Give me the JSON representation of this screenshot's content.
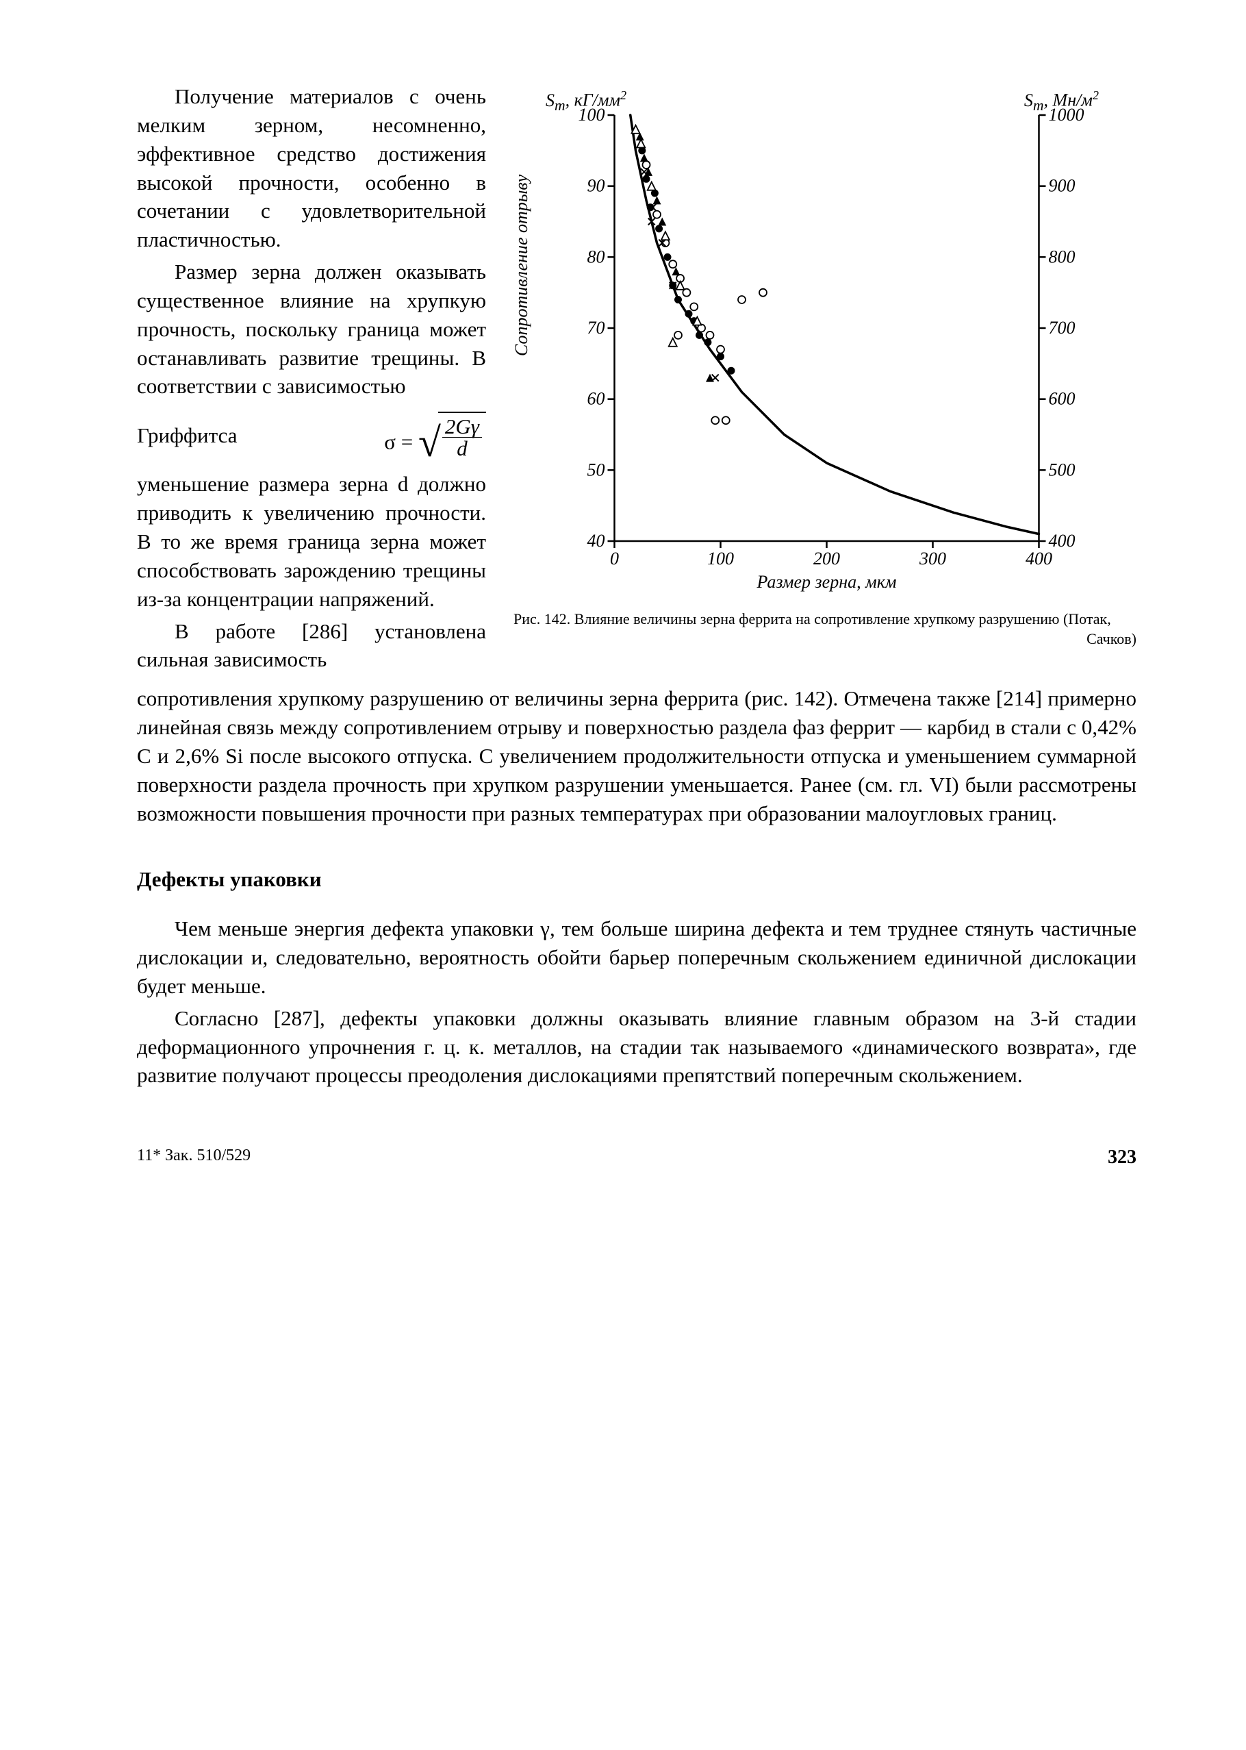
{
  "page": {
    "left_column_paragraphs": {
      "p1": "Получение материалов с очень мелким зерном, несомненно, эффективное средство достижения вы­сокой прочности, особенно в сочетании с удовлетво­рительной пластичностью.",
      "p2_head": "Размер зерна должен оказывать существенное влияние на хрупкую проч­ность, поскольку граница может останавливать раз­витие трещины. В соответ­ствии с зависимостью",
      "griffiths_label": "Гриффитса",
      "formula_sigma": "σ =",
      "formula_num": "2Gγ",
      "formula_den": "d",
      "p2_tail": "уменьшение размера зер­на d должно приводить к увеличению прочности. В то же время граница зерна может способство­вать зарождению трещи­ны из-за концентрации на­пряжений.",
      "p3": "В работе [286] установ­лена сильная зависимость"
    },
    "flow_paragraph": "сопротивления хрупкому разрушению от величины зерна феррита (рис. 142). Отмечена также [214] примерно линейная связь меж­ду сопротивлением отрыву и поверхностью раздела фаз фер­рит — карбид в стали с 0,42% С и 2,6% Si после высокого отпу­ска. С увеличением продолжительности отпуска и уменьшением суммарной поверхности раздела прочность при хрупком разру­шении уменьшается. Ранее (см. гл. VI) были рассмотрены воз­можности повышения прочности при разных температурах при образовании малоугловых границ.",
    "section_heading": "Дефекты упаковки",
    "defects_p1": "Чем меньше энергия дефекта упаковки γ, тем больше шири­на дефекта и тем труднее стянуть частичные дислокации и, сле­довательно, вероятность обойти барьер поперечным скольжени­ем единичной дислокации будет меньше.",
    "defects_p2": "Согласно [287], дефекты упаковки должны оказывать влияние главным образом на 3-й стадии деформационного уп­рочнения г. ц. к. металлов, на стадии так называемого «динами­ческого возврата», где развитие получают процессы преодоления дислокациями препятствий поперечным скольжением.",
    "footer_note": "11* Зак. 510/529",
    "page_number": "323"
  },
  "chart": {
    "type": "scatter+line",
    "background_color": "#ffffff",
    "axis_color": "#000000",
    "curve_color": "#000000",
    "curve_stroke_width": 3.5,
    "axis_stroke_width": 2.5,
    "tick_length": 10,
    "tick_font_size": 26,
    "axis_title_font_size": 26,
    "label_left_top_html": "S<sub>T</sub>, кГ/мм<sup>2</sup>",
    "label_left_top": "Sₜ, кГ/мм²",
    "label_right_top": "Sₜ, Мн/м²",
    "ylabel_left_rotated": "Сопротивление отрыву",
    "xlabel": "Размер зерна, мкм",
    "xlim": [
      0,
      400
    ],
    "x_ticks": [
      0,
      100,
      200,
      300,
      400
    ],
    "ylim_left": [
      40,
      100
    ],
    "y_ticks_left": [
      40,
      50,
      60,
      70,
      80,
      90,
      100
    ],
    "y_ticks_right": [
      400,
      500,
      600,
      700,
      800,
      900,
      1000
    ],
    "curve_points": [
      [
        15,
        100
      ],
      [
        20,
        95
      ],
      [
        30,
        88
      ],
      [
        40,
        82
      ],
      [
        60,
        74
      ],
      [
        90,
        67
      ],
      [
        120,
        61
      ],
      [
        160,
        55
      ],
      [
        200,
        51
      ],
      [
        260,
        47
      ],
      [
        320,
        44
      ],
      [
        370,
        42
      ],
      [
        400,
        41
      ]
    ],
    "markers": {
      "filled_circle": {
        "r": 5.5,
        "fill": "#000000",
        "stroke": null,
        "points": [
          [
            26,
            95
          ],
          [
            30,
            91
          ],
          [
            38,
            89
          ],
          [
            34,
            87
          ],
          [
            42,
            84
          ],
          [
            50,
            80
          ],
          [
            55,
            76
          ],
          [
            60,
            74
          ],
          [
            70,
            72
          ],
          [
            75,
            71
          ],
          [
            80,
            69
          ],
          [
            88,
            68
          ],
          [
            100,
            66
          ],
          [
            110,
            64
          ]
        ]
      },
      "open_circle": {
        "r": 5.5,
        "fill": "#ffffff",
        "stroke": "#000000",
        "stroke_width": 1.8,
        "points": [
          [
            30,
            93
          ],
          [
            40,
            86
          ],
          [
            48,
            82
          ],
          [
            55,
            79
          ],
          [
            62,
            77
          ],
          [
            68,
            75
          ],
          [
            75,
            73
          ],
          [
            82,
            70
          ],
          [
            90,
            69
          ],
          [
            100,
            67
          ],
          [
            60,
            69
          ],
          [
            140,
            75
          ],
          [
            120,
            74
          ],
          [
            95,
            57
          ],
          [
            105,
            57
          ]
        ]
      },
      "filled_triangle": {
        "size": 12,
        "fill": "#000000",
        "stroke": null,
        "points": [
          [
            24,
            97
          ],
          [
            28,
            94
          ],
          [
            32,
            92
          ],
          [
            40,
            88
          ],
          [
            45,
            85
          ],
          [
            58,
            78
          ],
          [
            90,
            63
          ]
        ]
      },
      "open_triangle": {
        "size": 12,
        "fill": "#ffffff",
        "stroke": "#000000",
        "stroke_width": 1.8,
        "points": [
          [
            20,
            98
          ],
          [
            25,
            96
          ],
          [
            35,
            90
          ],
          [
            48,
            83
          ],
          [
            62,
            76
          ],
          [
            78,
            71
          ],
          [
            55,
            68
          ]
        ]
      },
      "cross": {
        "size": 10,
        "stroke": "#000000",
        "stroke_width": 2,
        "points": [
          [
            28,
            92
          ],
          [
            36,
            87
          ],
          [
            45,
            82
          ],
          [
            55,
            76
          ],
          [
            95,
            63
          ],
          [
            35,
            85
          ]
        ]
      }
    },
    "caption_main": "Рис. 142. Влияние величины зерна феррита на сопротивление хрупкому разрушению (Потак,",
    "caption_tail": "Сачков)"
  }
}
